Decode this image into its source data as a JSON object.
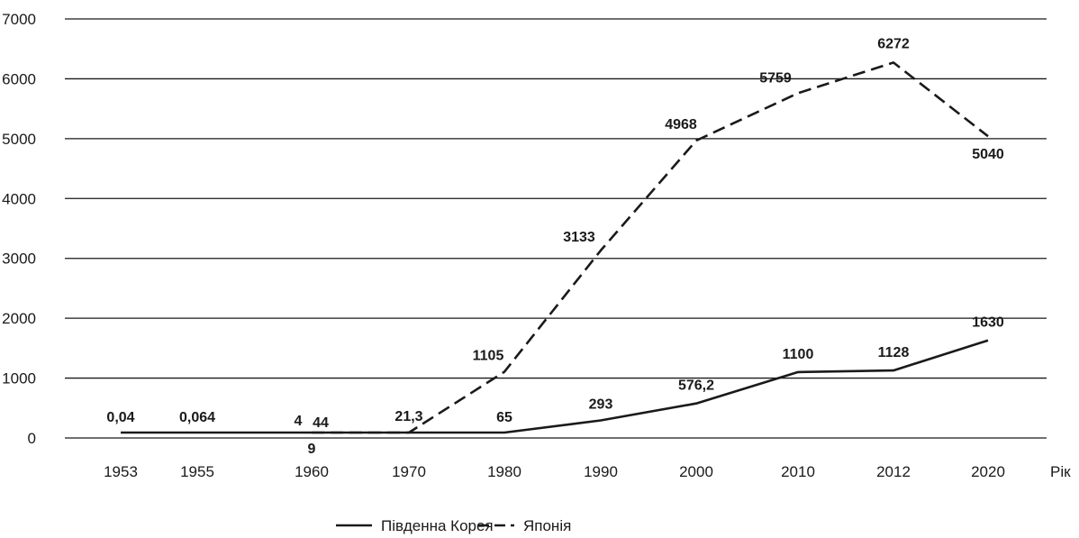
{
  "chart_data": {
    "type": "line",
    "title": "",
    "xlabel": "Рік",
    "ylabel": "",
    "ylim": [
      0,
      7000
    ],
    "yticks": [
      "0",
      "1000",
      "2000",
      "3000",
      "4000",
      "5000",
      "6000",
      "7000"
    ],
    "categories": [
      "1953",
      "1955",
      "1960",
      "1970",
      "1980",
      "1990",
      "2000",
      "2010",
      "2012",
      "2020"
    ],
    "grid": "horizontal",
    "legend_position": "bottom",
    "series": [
      {
        "name": "Південна Корея",
        "style": "solid",
        "color": "#1a1a1a",
        "values": [
          0.04,
          0.064,
          9,
          9,
          65,
          293,
          576.2,
          1100,
          1128,
          1630
        ],
        "labels": [
          "0,04",
          "0,064",
          "9",
          "",
          "65",
          "293",
          "576,2",
          "1100",
          "1128",
          "1630"
        ]
      },
      {
        "name": "Японія",
        "style": "dashed",
        "color": "#1a1a1a",
        "values": [
          null,
          null,
          4,
          21.3,
          1105,
          3133,
          4968,
          5759,
          6272,
          5040
        ],
        "labels": [
          "",
          "",
          "4",
          "21,3",
          "1105",
          "3133",
          "4968",
          "5759",
          "6272",
          "5040"
        ]
      }
    ],
    "extra_labels": [
      "44"
    ]
  }
}
